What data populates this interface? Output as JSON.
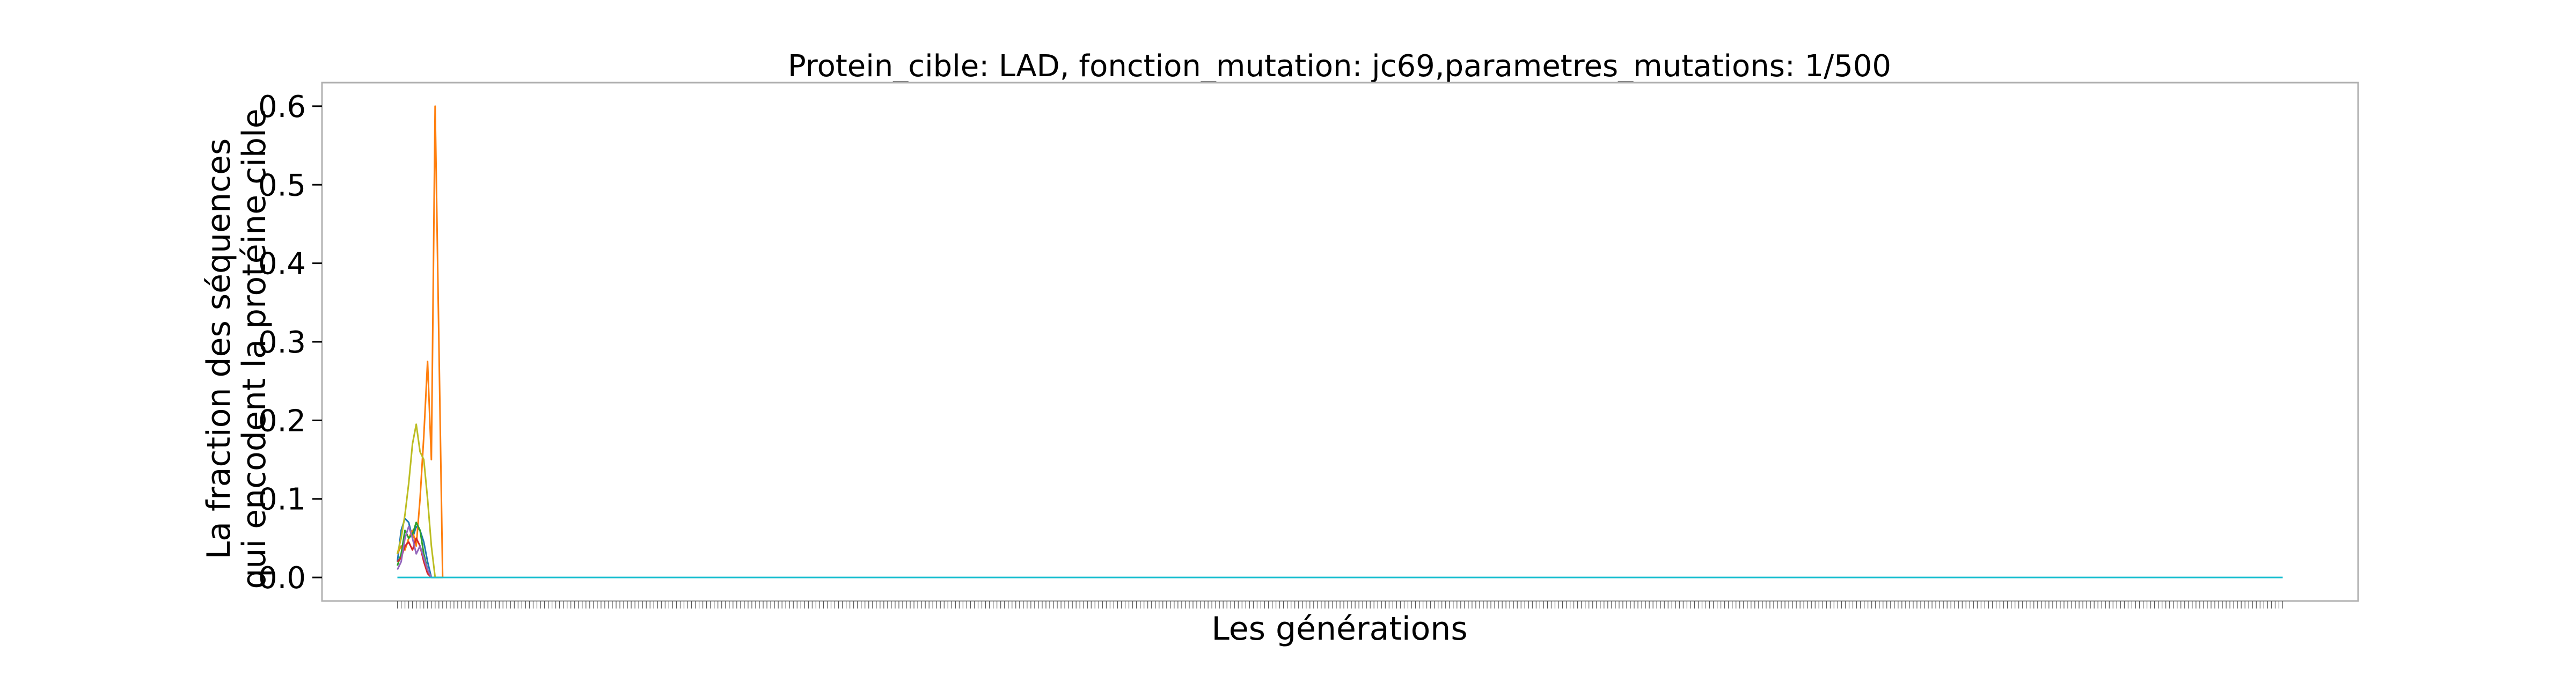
{
  "chart_data": {
    "type": "line",
    "title": "Protein_cible: LAD, fonction_mutation: jc69,parametres_mutations: 1/500",
    "xlabel": "Les générations",
    "ylabel": [
      "La fraction des séquences",
      "qui encodent la protéine cible"
    ],
    "ylim": [
      -0.03,
      0.63
    ],
    "xlim": [
      -20,
      520
    ],
    "y_ticks": [
      "0.0",
      "0.1",
      "0.2",
      "0.3",
      "0.4",
      "0.5",
      "0.6"
    ],
    "y_tick_values": [
      0,
      0.1,
      0.2,
      0.3,
      0.4,
      0.5,
      0.6
    ],
    "grid": false,
    "legend": "none",
    "series": [
      {
        "color": "#1f77b4",
        "x": [
          0,
          1,
          2,
          3,
          4,
          5,
          6,
          7,
          8,
          9,
          10,
          11,
          12
        ],
        "y": [
          0.02,
          0.06,
          0.075,
          0.07,
          0.05,
          0.065,
          0.06,
          0.045,
          0.02,
          0,
          0,
          0,
          0
        ]
      },
      {
        "color": "#ff7f0e",
        "x": [
          0,
          1,
          2,
          3,
          4,
          5,
          6,
          7,
          8,
          9,
          10,
          11,
          12
        ],
        "y": [
          0.03,
          0.04,
          0.035,
          0.05,
          0.06,
          0.04,
          0.1,
          0.18,
          0.275,
          0.15,
          0.6,
          0.3,
          0
        ]
      },
      {
        "color": "#2ca02c",
        "x": [
          0,
          1,
          2,
          3,
          4,
          5,
          6,
          7,
          8,
          9,
          10,
          11
        ],
        "y": [
          0.015,
          0.03,
          0.06,
          0.05,
          0.055,
          0.07,
          0.06,
          0.03,
          0.01,
          0,
          0,
          0
        ]
      },
      {
        "color": "#d62728",
        "x": [
          0,
          1,
          2,
          3,
          4,
          5,
          6,
          7,
          8,
          9
        ],
        "y": [
          0.02,
          0.025,
          0.04,
          0.045,
          0.035,
          0.05,
          0.04,
          0.02,
          0.005,
          0
        ]
      },
      {
        "color": "#9467bd",
        "x": [
          0,
          1,
          2,
          3,
          4,
          5,
          6,
          7,
          8,
          9,
          10
        ],
        "y": [
          0.01,
          0.02,
          0.05,
          0.065,
          0.05,
          0.03,
          0.04,
          0.025,
          0.01,
          0,
          0
        ]
      },
      {
        "color": "#bcbd22",
        "x": [
          0,
          1,
          2,
          3,
          4,
          5,
          6,
          7,
          8,
          9,
          10,
          11,
          12
        ],
        "y": [
          0.03,
          0.05,
          0.08,
          0.12,
          0.17,
          0.195,
          0.16,
          0.15,
          0.1,
          0.04,
          0,
          0,
          0
        ]
      },
      {
        "color": "#17becf",
        "x": [
          0,
          10,
          20,
          50,
          100,
          200,
          300,
          400,
          500
        ],
        "y": [
          0,
          0,
          0,
          0,
          0,
          0,
          0,
          0,
          0
        ]
      }
    ]
  }
}
